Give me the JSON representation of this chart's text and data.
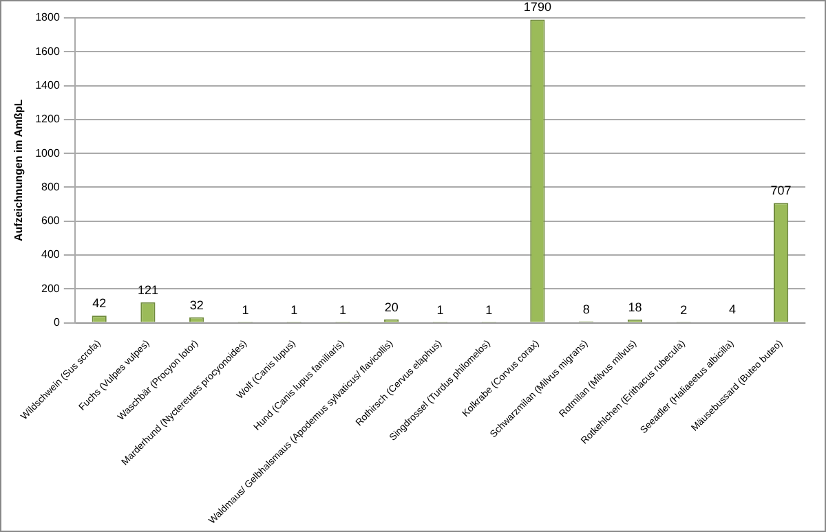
{
  "chart_data": {
    "type": "bar",
    "ylabel": "Aufzeichnungen im AmßpL",
    "categories": [
      "Wildschwein (Sus scrofa)",
      "Fuchs (Vulpes vulpes)",
      "Waschbär (Procyon lotor)",
      "Marderhund (Nyctereutes procyonoides)",
      "Wolf (Canis lupus)",
      "Hund (Canis lupus familiaris)",
      "Waldmaus/ Gelbhalsmaus (Apodemus sylvaticus/ flavicollis)",
      "Rothirsch (Cervus elaphus)",
      "Singdrossel (Turdus philomelos)",
      "Kolkrabe (Corvus corax)",
      "Schwarzmilan (Milvus migrans)",
      "Rotmilan (Milvus milvus)",
      "Rotkehlchen (Erithacus rubecula)",
      "Seeadler (Haliaeetus albicilla)",
      "Mäusebussard (Buteo buteo)"
    ],
    "values": [
      42,
      121,
      32,
      1,
      1,
      1,
      20,
      1,
      1,
      1790,
      8,
      18,
      2,
      4,
      707
    ],
    "color": "#9bbb59",
    "ylim": [
      0,
      1800
    ],
    "yticks": [
      0,
      200,
      400,
      600,
      800,
      1000,
      1200,
      1400,
      1600,
      1800
    ],
    "grid": "y",
    "data_labels": true,
    "legend": false
  }
}
